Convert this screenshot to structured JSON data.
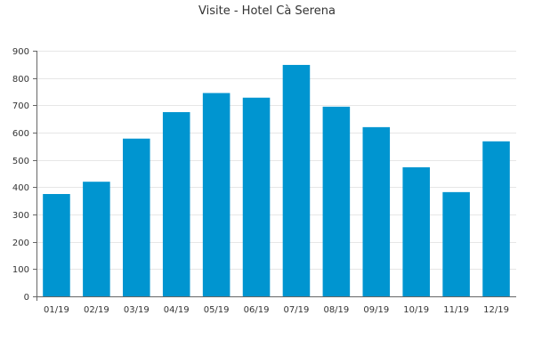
{
  "chart_data": {
    "type": "bar",
    "title": "Visite - Hotel Cà Serena",
    "xlabel": "",
    "ylabel": "",
    "categories": [
      "01/19",
      "02/19",
      "03/19",
      "04/19",
      "05/19",
      "06/19",
      "07/19",
      "08/19",
      "09/19",
      "10/19",
      "11/19",
      "12/19"
    ],
    "values": [
      375,
      420,
      578,
      675,
      745,
      728,
      848,
      695,
      620,
      473,
      382,
      568
    ],
    "ylim": [
      0,
      900
    ],
    "yticks": [
      0,
      100,
      200,
      300,
      400,
      500,
      600,
      700,
      800,
      900
    ],
    "grid": true,
    "legend": "none",
    "bar_color": "#0095d0"
  }
}
